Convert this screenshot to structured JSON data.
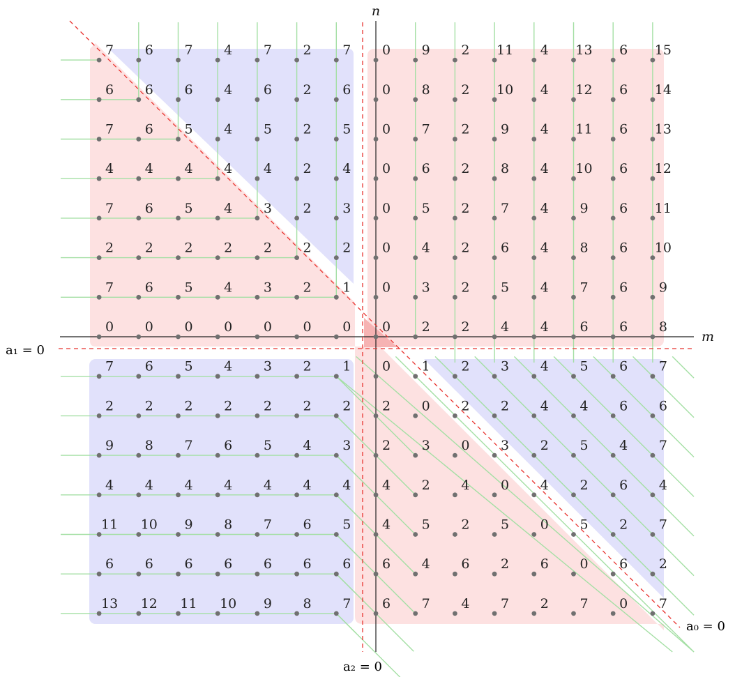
{
  "colors": {
    "pink_region": "#fde1e1",
    "blue_region": "#e1e1fb",
    "guide_line": "#a4dfa4",
    "dot": "#707070",
    "axis": "#222222",
    "dashed": "#e8332f"
  },
  "labels": {
    "x_axis": "m",
    "y_axis": "n",
    "line_a1": "a₁ = 0",
    "line_a2": "a₂ = 0",
    "line_a0": "a₀ = 0"
  },
  "grid": {
    "m_min": -7,
    "m_max": 7,
    "n_min": -7,
    "n_max": 7,
    "values": [
      [
        "7",
        "6",
        "7",
        "4",
        "7",
        "2",
        "7",
        "0",
        "9",
        "2",
        "11",
        "4",
        "13",
        "6",
        "15"
      ],
      [
        "6",
        "6",
        "6",
        "4",
        "6",
        "2",
        "6",
        "0",
        "8",
        "2",
        "10",
        "4",
        "12",
        "6",
        "14"
      ],
      [
        "7",
        "6",
        "5",
        "4",
        "5",
        "2",
        "5",
        "0",
        "7",
        "2",
        "9",
        "4",
        "11",
        "6",
        "13"
      ],
      [
        "4",
        "4",
        "4",
        "4",
        "4",
        "2",
        "4",
        "0",
        "6",
        "2",
        "8",
        "4",
        "10",
        "6",
        "12"
      ],
      [
        "7",
        "6",
        "5",
        "4",
        "3",
        "2",
        "3",
        "0",
        "5",
        "2",
        "7",
        "4",
        "9",
        "6",
        "11"
      ],
      [
        "2",
        "2",
        "2",
        "2",
        "2",
        "2",
        "2",
        "0",
        "4",
        "2",
        "6",
        "4",
        "8",
        "6",
        "10"
      ],
      [
        "7",
        "6",
        "5",
        "4",
        "3",
        "2",
        "1",
        "0",
        "3",
        "2",
        "5",
        "4",
        "7",
        "6",
        "9"
      ],
      [
        "0",
        "0",
        "0",
        "0",
        "0",
        "0",
        "0",
        "0",
        "2",
        "2",
        "4",
        "4",
        "6",
        "6",
        "8"
      ],
      [
        "7",
        "6",
        "5",
        "4",
        "3",
        "2",
        "1",
        "0",
        "1",
        "2",
        "3",
        "4",
        "5",
        "6",
        "7"
      ],
      [
        "2",
        "2",
        "2",
        "2",
        "2",
        "2",
        "2",
        "2",
        "0",
        "2",
        "2",
        "4",
        "4",
        "6",
        "6"
      ],
      [
        "9",
        "8",
        "7",
        "6",
        "5",
        "4",
        "3",
        "2",
        "3",
        "0",
        "3",
        "2",
        "5",
        "4",
        "7"
      ],
      [
        "4",
        "4",
        "4",
        "4",
        "4",
        "4",
        "4",
        "4",
        "2",
        "4",
        "0",
        "4",
        "2",
        "6",
        "4"
      ],
      [
        "11",
        "10",
        "9",
        "8",
        "7",
        "6",
        "5",
        "4",
        "5",
        "2",
        "5",
        "0",
        "5",
        "2",
        "7"
      ],
      [
        "6",
        "6",
        "6",
        "6",
        "6",
        "6",
        "6",
        "6",
        "4",
        "6",
        "2",
        "6",
        "0",
        "6",
        "2"
      ],
      [
        "13",
        "12",
        "11",
        "10",
        "9",
        "8",
        "7",
        "6",
        "7",
        "4",
        "7",
        "2",
        "7",
        "0",
        "7"
      ]
    ]
  }
}
